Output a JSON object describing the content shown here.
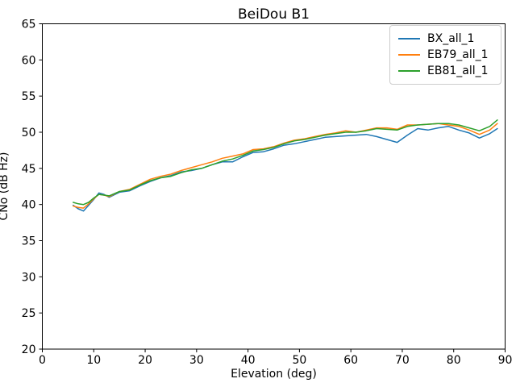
{
  "chart_data": {
    "type": "line",
    "title": "BeiDou B1",
    "xlabel": "Elevation (deg)",
    "ylabel": "CNo (dB Hz)",
    "xlim": [
      0,
      90
    ],
    "ylim": [
      20,
      65
    ],
    "x_ticks": [
      0,
      10,
      20,
      30,
      40,
      50,
      60,
      70,
      80,
      90
    ],
    "y_ticks": [
      20,
      25,
      30,
      35,
      40,
      45,
      50,
      55,
      60,
      65
    ],
    "grid": false,
    "legend_position": "upper right",
    "axis_color": "#000000",
    "x": [
      6,
      7,
      8,
      9,
      10,
      11,
      12,
      13,
      15,
      17,
      19,
      21,
      23,
      25,
      27,
      29,
      31,
      33,
      35,
      37,
      39,
      41,
      43,
      45,
      47,
      49,
      51,
      53,
      55,
      57,
      59,
      61,
      63,
      65,
      67,
      69,
      71,
      73,
      75,
      77,
      79,
      81,
      83,
      85,
      87,
      88.5
    ],
    "series": [
      {
        "name": "BX_all_1",
        "color": "#1f77b4",
        "values": [
          39.9,
          39.4,
          39.1,
          39.9,
          40.7,
          41.6,
          41.4,
          41.0,
          41.7,
          41.9,
          42.6,
          43.2,
          43.7,
          44.0,
          44.5,
          44.7,
          45.0,
          45.5,
          45.9,
          45.9,
          46.6,
          47.2,
          47.3,
          47.7,
          48.2,
          48.4,
          48.7,
          49.0,
          49.3,
          49.4,
          49.5,
          49.6,
          49.7,
          49.4,
          49.0,
          48.6,
          49.6,
          50.5,
          50.3,
          50.6,
          50.8,
          50.3,
          49.9,
          49.2,
          49.8,
          50.5
        ]
      },
      {
        "name": "EB79_all_1",
        "color": "#ff7f0e",
        "values": [
          39.8,
          39.6,
          39.5,
          40.1,
          40.8,
          41.4,
          41.3,
          41.1,
          41.8,
          42.1,
          42.8,
          43.5,
          43.9,
          44.2,
          44.7,
          45.1,
          45.5,
          45.9,
          46.4,
          46.7,
          47.0,
          47.6,
          47.7,
          48.0,
          48.5,
          48.9,
          49.1,
          49.4,
          49.7,
          49.9,
          50.2,
          50.0,
          50.3,
          50.6,
          50.6,
          50.4,
          51.0,
          51.0,
          51.1,
          51.2,
          51.0,
          50.8,
          50.3,
          49.7,
          50.3,
          51.2
        ]
      },
      {
        "name": "EB81_all_1",
        "color": "#2ca02c",
        "values": [
          40.3,
          40.1,
          40.0,
          40.3,
          40.9,
          41.4,
          41.3,
          41.2,
          41.8,
          42.0,
          42.7,
          43.3,
          43.7,
          43.9,
          44.4,
          44.8,
          45.0,
          45.5,
          46.0,
          46.3,
          46.8,
          47.4,
          47.6,
          47.9,
          48.4,
          48.8,
          49.0,
          49.3,
          49.6,
          49.8,
          50.0,
          50.0,
          50.2,
          50.5,
          50.4,
          50.3,
          50.8,
          51.0,
          51.1,
          51.2,
          51.2,
          51.0,
          50.6,
          50.2,
          50.8,
          51.7
        ]
      }
    ]
  }
}
